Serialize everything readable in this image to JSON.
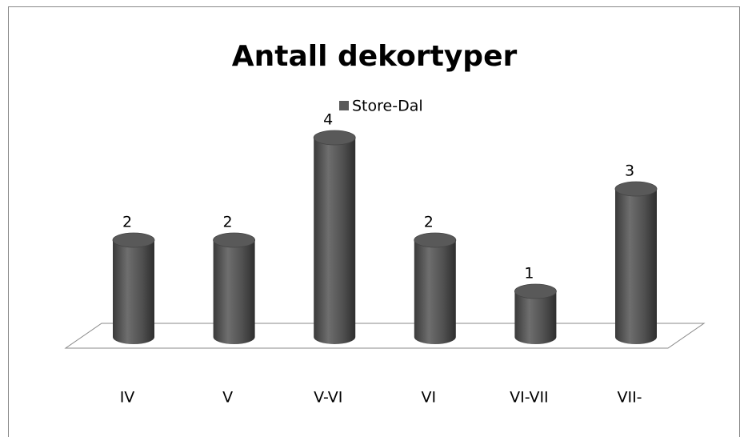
{
  "chart_data": {
    "type": "bar",
    "title": "Antall dekortyper",
    "categories": [
      "IV",
      "V",
      "V-VI",
      "VI",
      "VI-VII",
      "VII-"
    ],
    "series": [
      {
        "name": "Store-Dal",
        "color": "#595959",
        "values": [
          2,
          2,
          4,
          2,
          1,
          3
        ]
      }
    ]
  }
}
